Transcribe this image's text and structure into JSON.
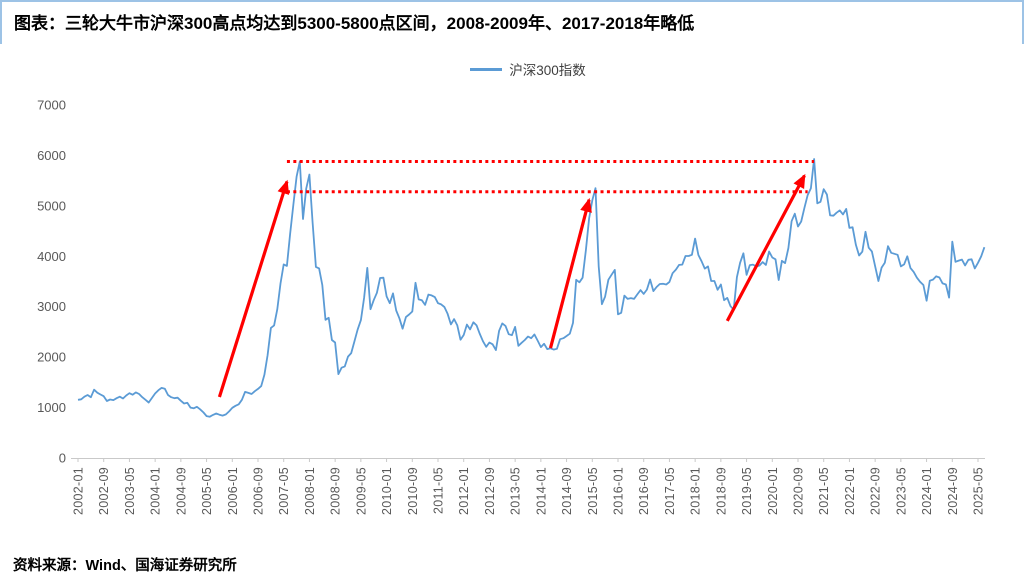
{
  "title": "图表：三轮大牛市沪深300高点均达到5300-5800点区间，2008-2009年、2017-2018年略低",
  "source": "资料来源：Wind、国海证券研究所",
  "legend": {
    "label": "沪深300指数"
  },
  "colors": {
    "series": "#5B9BD5",
    "annotation": "#FF0000",
    "axis": "#C9C9C9",
    "tick_text": "#595959",
    "title_border": "#9DC3E6"
  },
  "chart_data": {
    "type": "line",
    "series_name": "沪深300指数",
    "x_start": "2002-01",
    "frequency": "monthly",
    "ylim": [
      0,
      7000
    ],
    "y_ticks": [
      7000,
      6000,
      5000,
      4000,
      3000,
      2000,
      1000,
      0
    ],
    "x_tick_every": 8,
    "x_tick_labels": [
      "2002-01",
      "2002-09",
      "2003-05",
      "2004-01",
      "2004-09",
      "2005-05",
      "2006-01",
      "2006-09",
      "2007-05",
      "2008-01",
      "2008-09",
      "2009-05",
      "2010-01",
      "2010-09",
      "2011-05",
      "2012-01",
      "2012-09",
      "2013-05",
      "2014-01",
      "2014-09",
      "2015-05",
      "2016-01",
      "2016-09",
      "2017-05",
      "2018-01",
      "2018-09",
      "2019-05",
      "2020-01",
      "2020-09",
      "2021-05",
      "2022-01",
      "2022-09",
      "2023-05",
      "2024-01",
      "2024-09",
      "2025-05"
    ],
    "grid": false,
    "legend_position": "top-center",
    "values": [
      1155,
      1165,
      1215,
      1250,
      1205,
      1355,
      1295,
      1260,
      1225,
      1130,
      1160,
      1148,
      1185,
      1215,
      1180,
      1240,
      1285,
      1255,
      1300,
      1270,
      1205,
      1155,
      1100,
      1190,
      1280,
      1345,
      1390,
      1375,
      1250,
      1205,
      1185,
      1195,
      1135,
      1080,
      1095,
      1000,
      985,
      1015,
      965,
      905,
      830,
      818,
      855,
      882,
      858,
      840,
      865,
      925,
      995,
      1035,
      1065,
      1155,
      1310,
      1290,
      1270,
      1325,
      1370,
      1425,
      1650,
      2041,
      2580,
      2630,
      2950,
      3460,
      3840,
      3810,
      4440,
      5030,
      5580,
      5877,
      4740,
      5340,
      5620,
      4670,
      3790,
      3760,
      3430,
      2740,
      2780,
      2340,
      2290,
      1664,
      1790,
      1817,
      2010,
      2080,
      2310,
      2545,
      2735,
      3175,
      3770,
      2950,
      3130,
      3275,
      3570,
      3575,
      3205,
      3070,
      3265,
      2925,
      2770,
      2565,
      2795,
      2845,
      2905,
      3475,
      3145,
      3128,
      3035,
      3240,
      3225,
      3190,
      3070,
      3045,
      2995,
      2860,
      2650,
      2755,
      2630,
      2345,
      2440,
      2645,
      2550,
      2690,
      2630,
      2460,
      2315,
      2205,
      2290,
      2255,
      2140,
      2522,
      2670,
      2620,
      2455,
      2435,
      2600,
      2225,
      2285,
      2340,
      2410,
      2375,
      2450,
      2330,
      2200,
      2265,
      2160,
      2175,
      2150,
      2165,
      2355,
      2375,
      2420,
      2465,
      2680,
      3534,
      3485,
      3575,
      4125,
      4750,
      5110,
      5350,
      3800,
      3050,
      3200,
      3535,
      3635,
      3730,
      2850,
      2880,
      3220,
      3155,
      3170,
      3155,
      3245,
      3330,
      3255,
      3340,
      3540,
      3310,
      3390,
      3450,
      3455,
      3440,
      3490,
      3665,
      3735,
      3830,
      3835,
      4005,
      4005,
      4030,
      4350,
      4025,
      3900,
      3755,
      3800,
      3510,
      3510,
      3335,
      3440,
      3130,
      3175,
      3010,
      2940,
      3585,
      3870,
      4060,
      3630,
      3825,
      3835,
      3800,
      3815,
      3885,
      3830,
      4095,
      3975,
      3940,
      3530,
      3910,
      3865,
      4165,
      4695,
      4845,
      4590,
      4690,
      4960,
      5210,
      5350,
      5930,
      5050,
      5080,
      5330,
      5225,
      4810,
      4805,
      4865,
      4910,
      4830,
      4940,
      4565,
      4575,
      4225,
      4015,
      4090,
      4485,
      4170,
      4095,
      3805,
      3510,
      3775,
      3870,
      4200,
      4070,
      4050,
      4030,
      3800,
      3840,
      4000,
      3765,
      3690,
      3575,
      3495,
      3430,
      3120,
      3516,
      3537,
      3604,
      3580,
      3462,
      3440,
      3180,
      4290,
      3890,
      3915,
      3935,
      3820,
      3930,
      3940,
      3760,
      3870,
      4000,
      4180
    ],
    "annotations": {
      "dotted_lines": [
        {
          "value": 5880,
          "from": "2007-06",
          "to": "2021-02"
        },
        {
          "value": 5280,
          "from": "2007-06",
          "to": "2020-12"
        }
      ],
      "arrows": [
        {
          "from": {
            "month": "2005-09",
            "value": 1210
          },
          "to": {
            "month": "2007-06",
            "value": 5480
          }
        },
        {
          "from": {
            "month": "2014-04",
            "value": 2180
          },
          "to": {
            "month": "2015-04",
            "value": 5120
          }
        },
        {
          "from": {
            "month": "2018-11",
            "value": 2720
          },
          "to": {
            "month": "2020-11",
            "value": 5600
          }
        }
      ]
    }
  }
}
